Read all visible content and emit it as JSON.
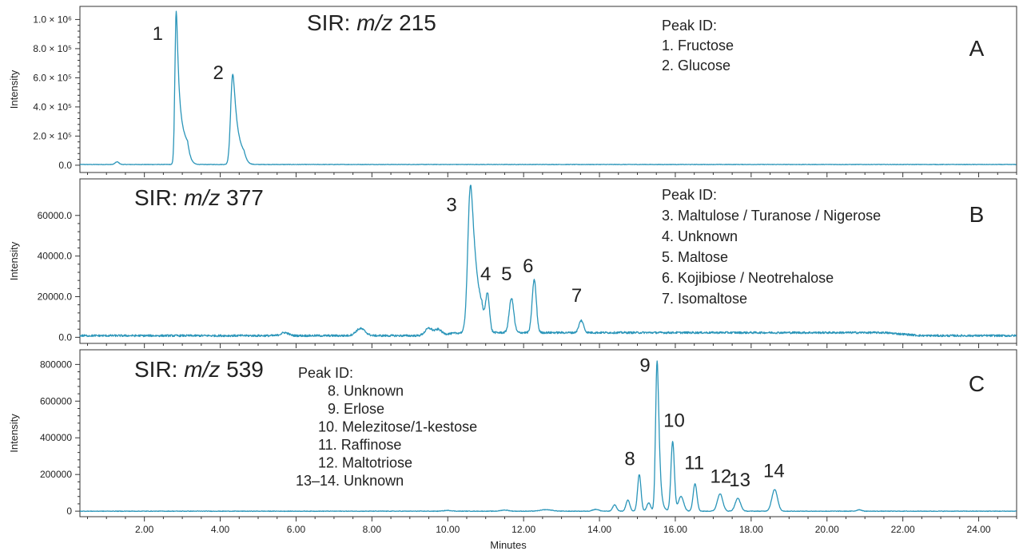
{
  "chart_data": {
    "type": "line",
    "xlabel": "Minutes",
    "xlim": [
      0.3,
      25.0
    ],
    "x_ticks": [
      "2.00",
      "4.00",
      "6.00",
      "8.00",
      "10.00",
      "12.00",
      "14.00",
      "16.00",
      "18.00",
      "20.00",
      "22.00",
      "24.00"
    ],
    "line_color": "#2a95b9",
    "panels": [
      {
        "letter": "A",
        "title_prefix": "SIR: ",
        "title_italic": "m/z",
        "title_value": " 215",
        "ylabel": "Intensity",
        "ylim": [
          -50000,
          1090000
        ],
        "y_ticks": [
          {
            "value": 0,
            "label": "0.0"
          },
          {
            "value": 200000,
            "label": "2.0 × 10⁵"
          },
          {
            "value": 400000,
            "label": "4.0 × 10⁵"
          },
          {
            "value": 600000,
            "label": "6.0 × 10⁵"
          },
          {
            "value": 800000,
            "label": "8.0 × 10⁵"
          },
          {
            "value": 1000000,
            "label": "1.0 × 10⁶"
          }
        ],
        "baseline": 5000,
        "noise": 1500,
        "peaks": [
          {
            "x": 1.28,
            "h": 18000,
            "w": 0.05
          },
          {
            "x": 2.84,
            "h": 1050000,
            "w": 0.035,
            "tail": 0.12
          },
          {
            "x": 4.33,
            "h": 620000,
            "w": 0.055,
            "tail": 0.1
          }
        ],
        "peak_labels": [
          {
            "text": "1",
            "x": 2.35,
            "y": 860000
          },
          {
            "text": "2",
            "x": 3.95,
            "y": 590000
          }
        ],
        "legend_title": "Peak ID:",
        "legend_items": [
          "1.  Fructose",
          "2.  Glucose"
        ]
      },
      {
        "letter": "B",
        "title_prefix": "SIR: ",
        "title_italic": "m/z",
        "title_value": " 377",
        "ylabel": "Intensity",
        "ylim": [
          -3000,
          78000
        ],
        "y_ticks": [
          {
            "value": 0,
            "label": "0.0"
          },
          {
            "value": 20000,
            "label": "20000.0"
          },
          {
            "value": 40000,
            "label": "40000.0"
          },
          {
            "value": 60000,
            "label": "60000.0"
          }
        ],
        "baseline": 800,
        "noise": 500,
        "hump": {
          "x0": 10.4,
          "x1": 21.5,
          "h": 1500
        },
        "peaks": [
          {
            "x": 5.7,
            "h": 1500,
            "w": 0.1
          },
          {
            "x": 7.7,
            "h": 3500,
            "w": 0.12
          },
          {
            "x": 9.5,
            "h": 3500,
            "w": 0.1
          },
          {
            "x": 9.75,
            "h": 2500,
            "w": 0.08
          },
          {
            "x": 10.6,
            "h": 73000,
            "w": 0.07,
            "tail": 0.1
          },
          {
            "x": 11.05,
            "h": 17500,
            "w": 0.05
          },
          {
            "x": 11.68,
            "h": 17000,
            "w": 0.06
          },
          {
            "x": 12.28,
            "h": 26000,
            "w": 0.055
          },
          {
            "x": 13.52,
            "h": 6000,
            "w": 0.06
          }
        ],
        "peak_labels": [
          {
            "text": "3",
            "x": 10.1,
            "y": 62000
          },
          {
            "text": "4",
            "x": 11.0,
            "y": 28000
          },
          {
            "text": "5",
            "x": 11.55,
            "y": 28000
          },
          {
            "text": "6",
            "x": 12.12,
            "y": 32000
          },
          {
            "text": "7",
            "x": 13.4,
            "y": 17500
          }
        ],
        "legend_title": "Peak ID:",
        "legend_items": [
          "3.  Maltulose / Turanose / Nigerose",
          "4.  Unknown",
          "5.  Maltose",
          "6.  Kojibiose / Neotrehalose",
          "7.  Isomaltose"
        ]
      },
      {
        "letter": "C",
        "title_prefix": "SIR: ",
        "title_italic": "m/z",
        "title_value": " 539",
        "ylabel": "Intensity",
        "ylim": [
          -30000,
          880000
        ],
        "y_ticks": [
          {
            "value": 0,
            "label": "0"
          },
          {
            "value": 200000,
            "label": "200000"
          },
          {
            "value": 400000,
            "label": "400000"
          },
          {
            "value": 600000,
            "label": "600000"
          },
          {
            "value": 800000,
            "label": "800000"
          }
        ],
        "baseline": 0,
        "noise": 1500,
        "peaks": [
          {
            "x": 10.0,
            "h": 4000,
            "w": 0.1
          },
          {
            "x": 11.5,
            "h": 6000,
            "w": 0.1
          },
          {
            "x": 12.6,
            "h": 8000,
            "w": 0.15
          },
          {
            "x": 13.9,
            "h": 10000,
            "w": 0.08
          },
          {
            "x": 14.4,
            "h": 35000,
            "w": 0.05
          },
          {
            "x": 14.75,
            "h": 60000,
            "w": 0.05
          },
          {
            "x": 15.05,
            "h": 200000,
            "w": 0.045
          },
          {
            "x": 15.3,
            "h": 45000,
            "w": 0.05
          },
          {
            "x": 15.52,
            "h": 820000,
            "w": 0.04,
            "tail": 0.05
          },
          {
            "x": 15.93,
            "h": 380000,
            "w": 0.045
          },
          {
            "x": 16.15,
            "h": 80000,
            "w": 0.07
          },
          {
            "x": 16.52,
            "h": 150000,
            "w": 0.05
          },
          {
            "x": 17.18,
            "h": 95000,
            "w": 0.07
          },
          {
            "x": 17.65,
            "h": 70000,
            "w": 0.07
          },
          {
            "x": 18.62,
            "h": 118000,
            "w": 0.075
          },
          {
            "x": 20.85,
            "h": 8000,
            "w": 0.06
          }
        ],
        "peak_labels": [
          {
            "text": "8",
            "x": 14.8,
            "y": 250000
          },
          {
            "text": "9",
            "x": 15.2,
            "y": 760000
          },
          {
            "text": "10",
            "x": 15.97,
            "y": 460000
          },
          {
            "text": "11",
            "x": 16.5,
            "y": 230000
          },
          {
            "text": "12",
            "x": 17.2,
            "y": 155000
          },
          {
            "text": "13",
            "x": 17.7,
            "y": 135000
          },
          {
            "text": "14",
            "x": 18.6,
            "y": 185000
          }
        ],
        "legend_title": "Peak ID:",
        "legend_items": [
          "8.  Unknown",
          "9.  Erlose",
          "10.  Melezitose/1-kestose",
          "11.  Raffinose",
          "12.  Maltotriose",
          "13–14. Unknown"
        ]
      }
    ]
  }
}
